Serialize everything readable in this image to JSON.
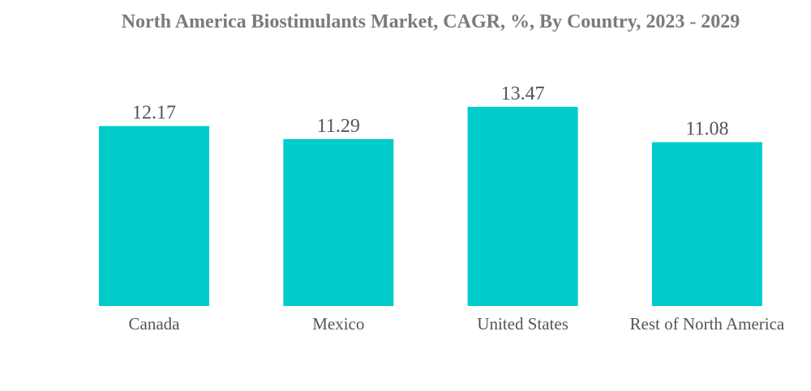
{
  "chart_data": {
    "type": "bar",
    "title": "North America Biostimulants Market, CAGR, %, By Country, 2023 - 2029",
    "xlabel": "",
    "ylabel": "",
    "categories": [
      "Canada",
      "Mexico",
      "United States",
      "Rest of North America"
    ],
    "values": [
      12.17,
      11.29,
      13.47,
      11.08
    ],
    "data_labels": [
      "12.17",
      "11.29",
      "13.47",
      "11.08"
    ],
    "ylim": [
      0,
      13.47
    ],
    "bar_color": "#00CCCC",
    "grid": false,
    "legend": "none"
  }
}
